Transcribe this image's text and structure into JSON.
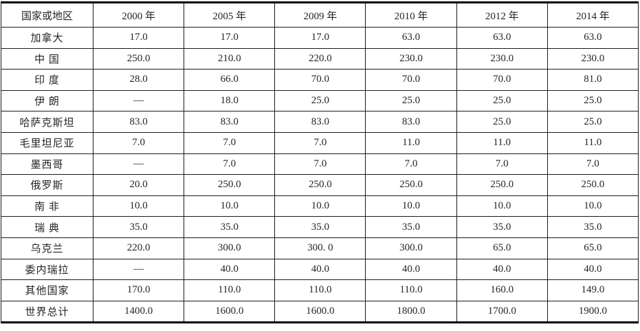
{
  "chart_data": {
    "type": "table",
    "columns": [
      "国家或地区",
      "2000 年",
      "2005 年",
      "2009 年",
      "2010 年",
      "2012 年",
      "2014 年"
    ],
    "rows": [
      {
        "label": "加拿大",
        "values": [
          "17.0",
          "17.0",
          "17.0",
          "63.0",
          "63.0",
          "63.0"
        ]
      },
      {
        "label": "中 国",
        "values": [
          "250.0",
          "210.0",
          "220.0",
          "230.0",
          "230.0",
          "230.0"
        ]
      },
      {
        "label": "印 度",
        "values": [
          "28.0",
          "66.0",
          "70.0",
          "70.0",
          "70.0",
          "81.0"
        ]
      },
      {
        "label": "伊 朗",
        "values": [
          "—",
          "18.0",
          "25.0",
          "25.0",
          "25.0",
          "25.0"
        ]
      },
      {
        "label": "哈萨克斯坦",
        "values": [
          "83.0",
          "83.0",
          "83.0",
          "83.0",
          "25.0",
          "25.0"
        ]
      },
      {
        "label": "毛里坦尼亚",
        "values": [
          "7.0",
          "7.0",
          "7.0",
          "11.0",
          "11.0",
          "11.0"
        ]
      },
      {
        "label": "墨西哥",
        "values": [
          "—",
          "7.0",
          "7.0",
          "7.0",
          "7.0",
          "7.0"
        ]
      },
      {
        "label": "俄罗斯",
        "values": [
          "20.0",
          "250.0",
          "250.0",
          "250.0",
          "250.0",
          "250.0"
        ]
      },
      {
        "label": "南 非",
        "values": [
          "10.0",
          "10.0",
          "10.0",
          "10.0",
          "10.0",
          "10.0"
        ]
      },
      {
        "label": "瑞 典",
        "values": [
          "35.0",
          "35.0",
          "35.0",
          "35.0",
          "35.0",
          "35.0"
        ]
      },
      {
        "label": "乌克兰",
        "values": [
          "220.0",
          "300.0",
          "300.  0",
          "300.0",
          "65.0",
          "65.0"
        ]
      },
      {
        "label": "委内瑞拉",
        "values": [
          "—",
          "40.0",
          "40.0",
          "40.0",
          "40.0",
          "40.0"
        ]
      },
      {
        "label": "其他国家",
        "values": [
          "170.0",
          "110.0",
          "110.0",
          "110.0",
          "160.0",
          "149.0"
        ]
      },
      {
        "label": "世界总计",
        "values": [
          "1400.0",
          "1600.0",
          "1600.0",
          "1800.0",
          "1700.0",
          "1900.0"
        ]
      }
    ],
    "layout": {
      "grid": true,
      "outer_rule": "thick-top-bottom",
      "first_column_header": "国家或地区"
    }
  }
}
